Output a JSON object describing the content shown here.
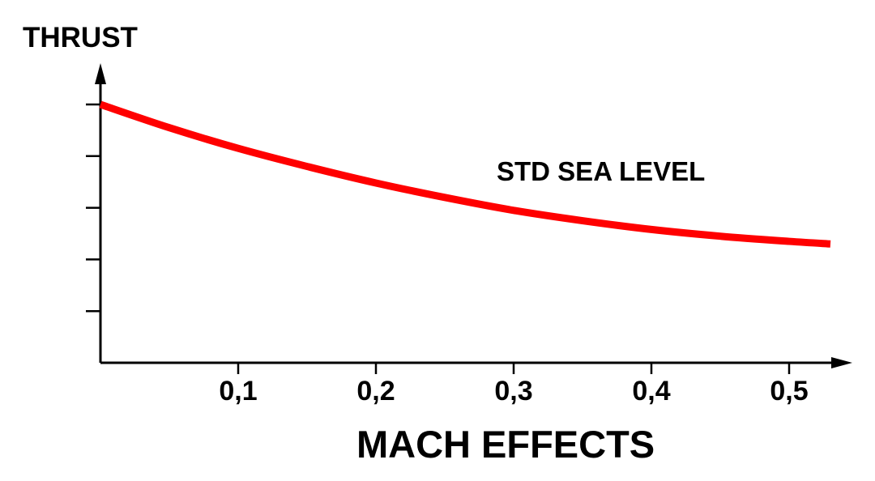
{
  "chart_data": {
    "type": "line",
    "ylabel": "THRUST",
    "xlabel": "MACH EFFECTS",
    "annotation": "STD SEA LEVEL",
    "xlim": [
      0,
      0.55
    ],
    "ylim": [
      0,
      5
    ],
    "x_ticks": [
      {
        "value": 0.1,
        "label": "0,1"
      },
      {
        "value": 0.2,
        "label": "0,2"
      },
      {
        "value": 0.3,
        "label": "0,3"
      },
      {
        "value": 0.4,
        "label": "0,4"
      },
      {
        "value": 0.5,
        "label": "0,5"
      }
    ],
    "y_ticks": [
      1,
      2,
      3,
      4,
      5
    ],
    "y_tick_labels_shown": false,
    "grid": false,
    "series": [
      {
        "color": "#ff0000",
        "x": [
          0,
          0.05,
          0.1,
          0.15,
          0.2,
          0.25,
          0.3,
          0.35,
          0.4,
          0.45,
          0.5,
          0.53
        ],
        "y": [
          5.0,
          4.55,
          4.15,
          3.8,
          3.48,
          3.2,
          2.95,
          2.75,
          2.58,
          2.45,
          2.35,
          2.3
        ]
      }
    ]
  }
}
